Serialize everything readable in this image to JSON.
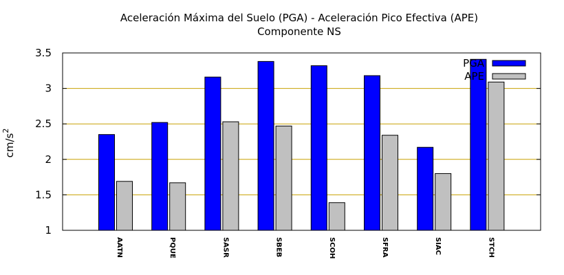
{
  "chart_data": {
    "type": "bar",
    "title": "Aceleración Máxima del Suelo (PGA) -  Aceleración Pico Efectiva (APE)",
    "subtitle": "Componente NS",
    "xlabel": "",
    "ylabel_base": "cm/s",
    "ylabel_sup": "2",
    "ylim": [
      1,
      3.5
    ],
    "yticks": [
      1,
      1.5,
      2,
      2.5,
      3,
      3.5
    ],
    "ytick_labels": [
      "1",
      "1.5",
      "2",
      "2.5",
      "3",
      "3.5"
    ],
    "grid": "horizontal",
    "legend_position": "top-right",
    "categories": [
      "AATN",
      "PQUE",
      "SASR",
      "SBEB",
      "SCOH",
      "SFRA",
      "SIAC",
      "STCH"
    ],
    "series": [
      {
        "name": "PGA",
        "color": "#0000ff",
        "values": [
          2.35,
          2.52,
          3.16,
          3.38,
          3.32,
          3.18,
          2.17,
          3.41
        ]
      },
      {
        "name": "APE",
        "color": "#c0c0c0",
        "values": [
          1.69,
          1.67,
          2.53,
          2.47,
          1.39,
          2.34,
          1.8,
          3.09
        ]
      }
    ]
  }
}
